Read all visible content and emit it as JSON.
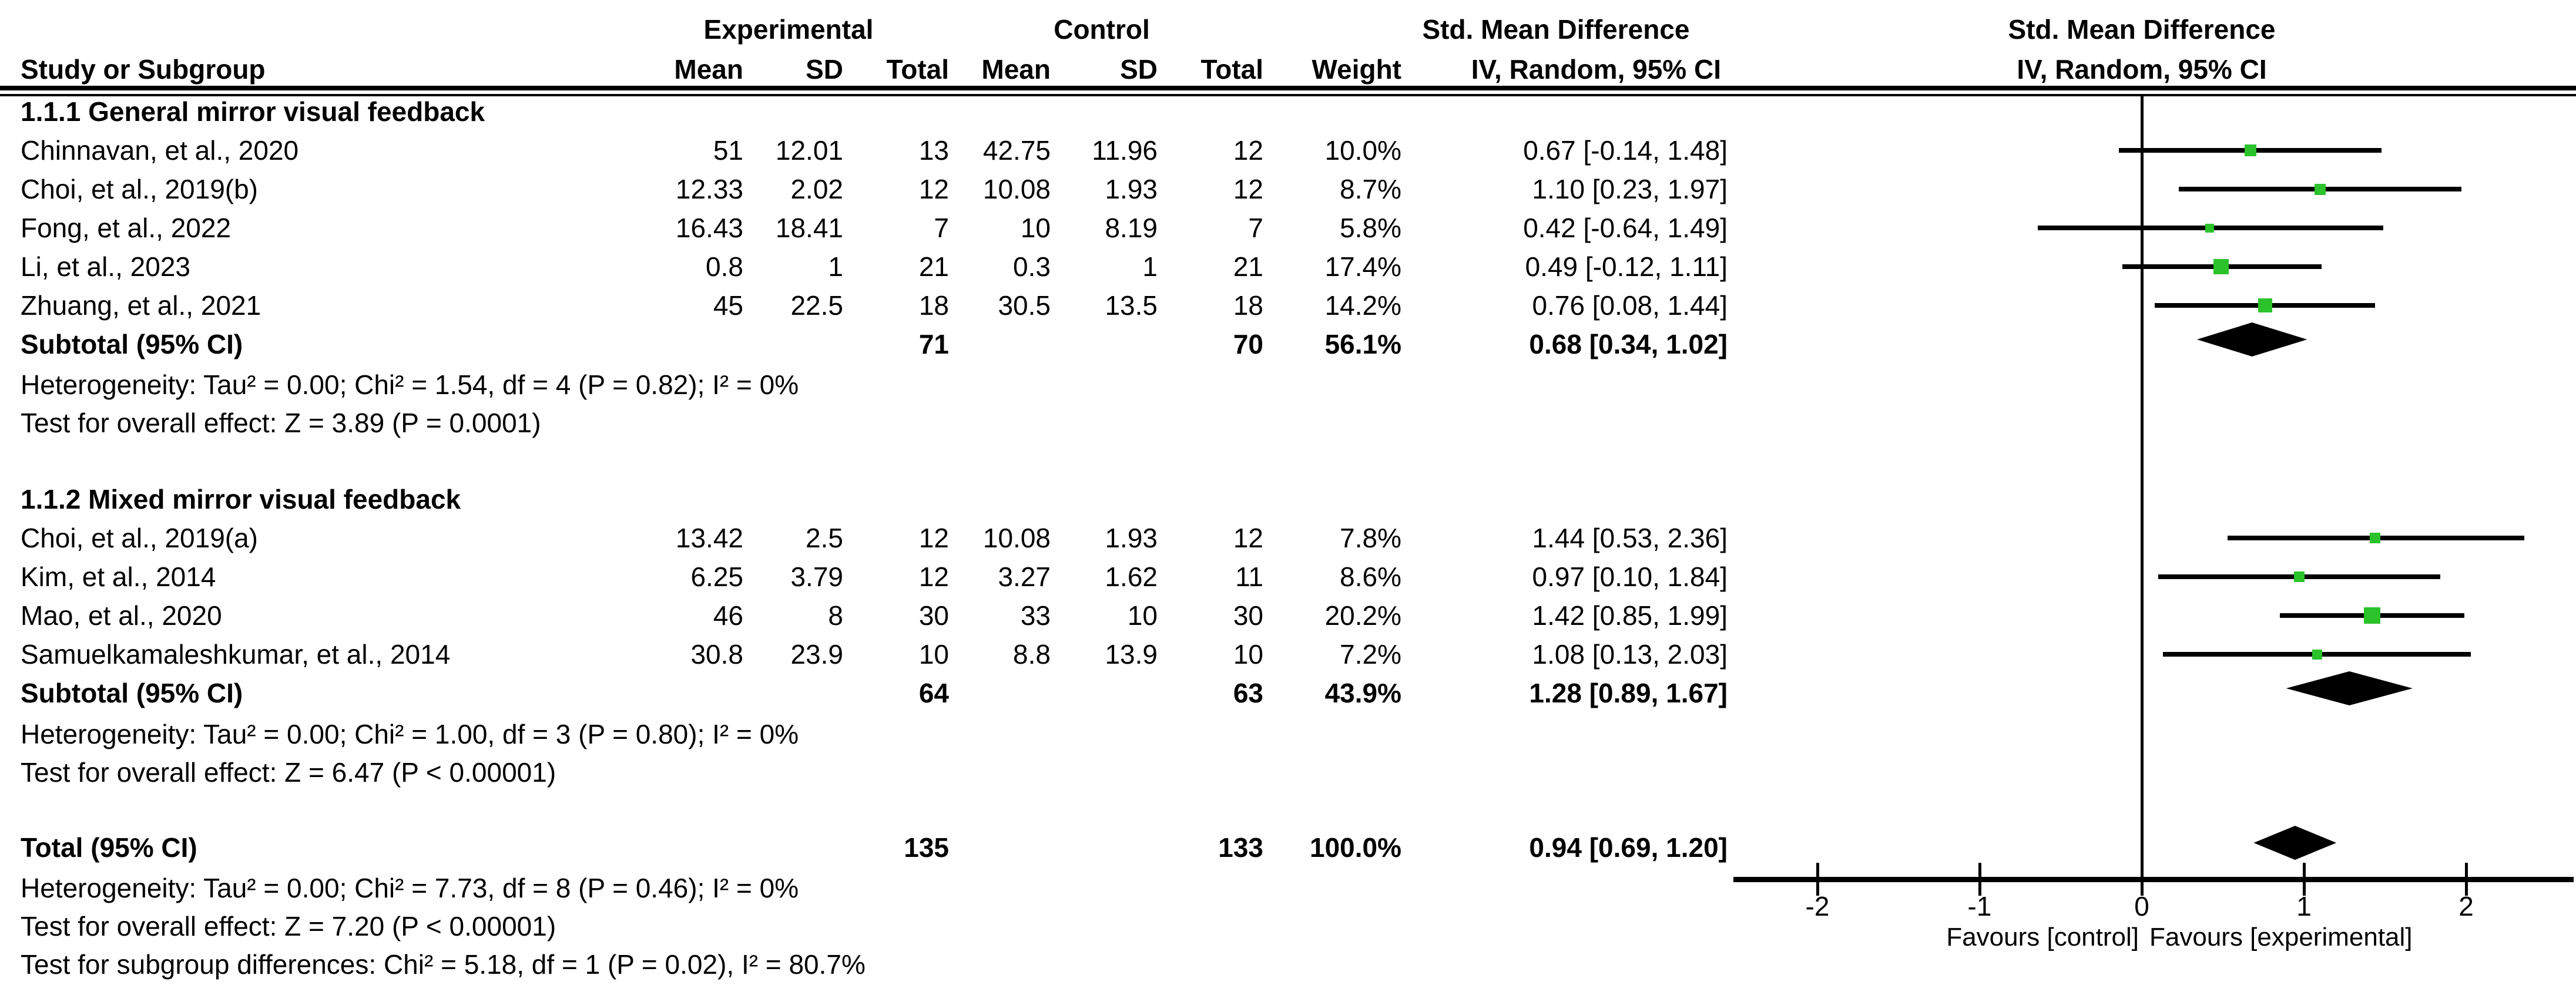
{
  "header": {
    "group_exp": "Experimental",
    "group_ctrl": "Control",
    "smd": "Std. Mean Difference",
    "study": "Study or Subgroup",
    "mean": "Mean",
    "sd": "SD",
    "total": "Total",
    "weight": "Weight",
    "iv": "IV, Random, 95% CI"
  },
  "chart_data": {
    "type": "forest",
    "effect_measure": "Std. Mean Difference",
    "model": "IV, Random, 95% CI",
    "marker_color": "#2bc22b",
    "diamond_color": "#000000",
    "xlim": [
      -2.5,
      2.6
    ],
    "ticks": [
      -2,
      -1,
      0,
      1,
      2
    ],
    "tick_labels": [
      "-2",
      "-1",
      "0",
      "1",
      "2"
    ],
    "favours_left": "Favours [control]",
    "favours_right": "Favours [experimental]",
    "groups": [
      {
        "heading": "1.1.1 General mirror visual feedback",
        "studies": [
          {
            "name": "Chinnavan, et al., 2020",
            "mean_e": "51",
            "sd_e": "12.01",
            "total_e": "13",
            "mean_c": "42.75",
            "sd_c": "11.96",
            "total_c": "12",
            "weight": "10.0%",
            "ci_text": "0.67 [-0.14, 1.48]",
            "est": 0.67,
            "lo": -0.14,
            "hi": 1.48,
            "weight_pct": 10.0
          },
          {
            "name": "Choi, et al., 2019(b)",
            "mean_e": "12.33",
            "sd_e": "2.02",
            "total_e": "12",
            "mean_c": "10.08",
            "sd_c": "1.93",
            "total_c": "12",
            "weight": "8.7%",
            "ci_text": "1.10 [0.23, 1.97]",
            "est": 1.1,
            "lo": 0.23,
            "hi": 1.97,
            "weight_pct": 8.7
          },
          {
            "name": "Fong, et al., 2022",
            "mean_e": "16.43",
            "sd_e": "18.41",
            "total_e": "7",
            "mean_c": "10",
            "sd_c": "8.19",
            "total_c": "7",
            "weight": "5.8%",
            "ci_text": "0.42 [-0.64, 1.49]",
            "est": 0.42,
            "lo": -0.64,
            "hi": 1.49,
            "weight_pct": 5.8
          },
          {
            "name": "Li, et al., 2023",
            "mean_e": "0.8",
            "sd_e": "1",
            "total_e": "21",
            "mean_c": "0.3",
            "sd_c": "1",
            "total_c": "21",
            "weight": "17.4%",
            "ci_text": "0.49 [-0.12, 1.11]",
            "est": 0.49,
            "lo": -0.12,
            "hi": 1.11,
            "weight_pct": 17.4
          },
          {
            "name": "Zhuang, et al., 2021",
            "mean_e": "45",
            "sd_e": "22.5",
            "total_e": "18",
            "mean_c": "30.5",
            "sd_c": "13.5",
            "total_c": "18",
            "weight": "14.2%",
            "ci_text": "0.76 [0.08, 1.44]",
            "est": 0.76,
            "lo": 0.08,
            "hi": 1.44,
            "weight_pct": 14.2
          }
        ],
        "subtotal": {
          "label": "Subtotal (95% CI)",
          "total_e": "71",
          "total_c": "70",
          "weight": "56.1%",
          "ci_text": "0.68 [0.34, 1.02]",
          "est": 0.68,
          "lo": 0.34,
          "hi": 1.02
        },
        "heterogeneity": "Heterogeneity: Tau² = 0.00; Chi² = 1.54, df = 4 (P = 0.82); I² = 0%",
        "overall_effect": "Test for overall effect: Z = 3.89 (P = 0.0001)"
      },
      {
        "heading": "1.1.2 Mixed mirror visual feedback",
        "studies": [
          {
            "name": "Choi, et al., 2019(a)",
            "mean_e": "13.42",
            "sd_e": "2.5",
            "total_e": "12",
            "mean_c": "10.08",
            "sd_c": "1.93",
            "total_c": "12",
            "weight": "7.8%",
            "ci_text": "1.44 [0.53, 2.36]",
            "est": 1.44,
            "lo": 0.53,
            "hi": 2.36,
            "weight_pct": 7.8
          },
          {
            "name": "Kim, et al., 2014",
            "mean_e": "6.25",
            "sd_e": "3.79",
            "total_e": "12",
            "mean_c": "3.27",
            "sd_c": "1.62",
            "total_c": "11",
            "weight": "8.6%",
            "ci_text": "0.97 [0.10, 1.84]",
            "est": 0.97,
            "lo": 0.1,
            "hi": 1.84,
            "weight_pct": 8.6
          },
          {
            "name": "Mao, et al., 2020",
            "mean_e": "46",
            "sd_e": "8",
            "total_e": "30",
            "mean_c": "33",
            "sd_c": "10",
            "total_c": "30",
            "weight": "20.2%",
            "ci_text": "1.42 [0.85, 1.99]",
            "est": 1.42,
            "lo": 0.85,
            "hi": 1.99,
            "weight_pct": 20.2
          },
          {
            "name": "Samuelkamaleshkumar, et al., 2014",
            "mean_e": "30.8",
            "sd_e": "23.9",
            "total_e": "10",
            "mean_c": "8.8",
            "sd_c": "13.9",
            "total_c": "10",
            "weight": "7.2%",
            "ci_text": "1.08 [0.13, 2.03]",
            "est": 1.08,
            "lo": 0.13,
            "hi": 2.03,
            "weight_pct": 7.2
          }
        ],
        "subtotal": {
          "label": "Subtotal (95% CI)",
          "total_e": "64",
          "total_c": "63",
          "weight": "43.9%",
          "ci_text": "1.28 [0.89, 1.67]",
          "est": 1.28,
          "lo": 0.89,
          "hi": 1.67
        },
        "heterogeneity": "Heterogeneity: Tau² = 0.00; Chi² = 1.00, df = 3 (P = 0.80); I² = 0%",
        "overall_effect": "Test for overall effect: Z = 6.47 (P < 0.00001)"
      }
    ],
    "total": {
      "label": "Total (95% CI)",
      "total_e": "135",
      "total_c": "133",
      "weight": "100.0%",
      "ci_text": "0.94 [0.69, 1.20]",
      "est": 0.94,
      "lo": 0.69,
      "hi": 1.2
    },
    "total_heterogeneity": "Heterogeneity: Tau² = 0.00; Chi² = 7.73, df = 8 (P = 0.46); I² = 0%",
    "total_overall": "Test for overall effect: Z = 7.20 (P < 0.00001)",
    "subgroup_diff": "Test for subgroup differences: Chi² = 5.18, df = 1 (P = 0.02), I² = 80.7%"
  }
}
